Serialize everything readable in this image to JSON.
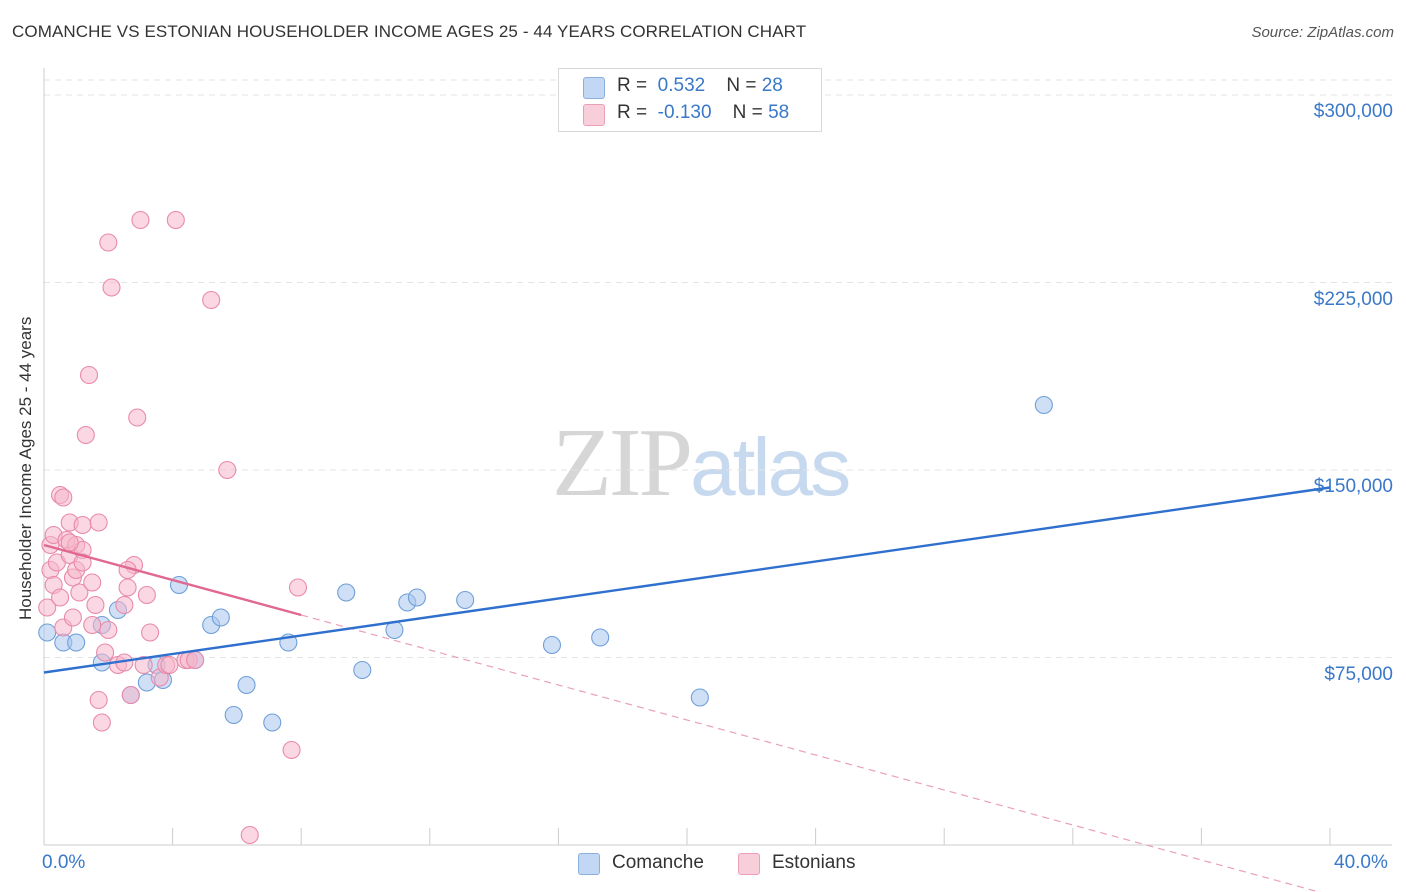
{
  "chart_data": {
    "type": "scatter",
    "title": "COMANCHE VS ESTONIAN HOUSEHOLDER INCOME AGES 25 - 44 YEARS CORRELATION CHART",
    "source": "Source: ZipAtlas.com",
    "xlabel": "",
    "ylabel": "Householder Income Ages 25 - 44 years",
    "xlim": [
      0,
      40
    ],
    "ylim": [
      0,
      310000
    ],
    "x_tick_labels": [
      "0.0%",
      "40.0%"
    ],
    "y_ticks": [
      {
        "value": 75000,
        "label": "$75,000"
      },
      {
        "value": 150000,
        "label": "$150,000"
      },
      {
        "value": 225000,
        "label": "$225,000"
      },
      {
        "value": 300000,
        "label": "$300,000"
      }
    ],
    "grid": true,
    "legend": {
      "position": "top-center",
      "entries": [
        {
          "r_label": "R =",
          "r_value": "0.532",
          "n_label": "N =",
          "n_value": "28",
          "color": "#a8c6ee"
        },
        {
          "r_label": "R =",
          "r_value": "-0.130",
          "n_label": "N =",
          "n_value": "58",
          "color": "#f5b6ca"
        }
      ]
    },
    "series": [
      {
        "name": "Comanche",
        "color": "#a8c6ee",
        "stroke": "#6f9fd8",
        "trend": {
          "x": [
            0,
            40
          ],
          "y": [
            69000,
            143000
          ],
          "color": "#2f6fce"
        },
        "points": [
          [
            0.1,
            85000
          ],
          [
            0.6,
            81000
          ],
          [
            1.0,
            81000
          ],
          [
            1.8,
            88000
          ],
          [
            2.3,
            94000
          ],
          [
            1.8,
            73000
          ],
          [
            2.7,
            60000
          ],
          [
            3.2,
            65000
          ],
          [
            3.5,
            72000
          ],
          [
            3.7,
            66000
          ],
          [
            4.2,
            104000
          ],
          [
            4.7,
            74000
          ],
          [
            5.2,
            88000
          ],
          [
            5.5,
            91000
          ],
          [
            5.9,
            52000
          ],
          [
            6.3,
            64000
          ],
          [
            7.1,
            49000
          ],
          [
            7.6,
            81000
          ],
          [
            9.4,
            101000
          ],
          [
            9.9,
            70000
          ],
          [
            10.9,
            86000
          ],
          [
            11.3,
            97000
          ],
          [
            11.6,
            99000
          ],
          [
            13.1,
            98000
          ],
          [
            15.8,
            80000
          ],
          [
            17.3,
            83000
          ],
          [
            20.4,
            59000
          ],
          [
            31.1,
            176000
          ]
        ]
      },
      {
        "name": "Estonians",
        "color": "#f5b6ca",
        "stroke": "#e98aaa",
        "trend": {
          "x": [
            0,
            8
          ],
          "y": [
            120000,
            92000
          ],
          "dash_to_x": 40,
          "dash_to_y": -20000,
          "color": "#e06891"
        },
        "points": [
          [
            0.1,
            95000
          ],
          [
            0.2,
            110000
          ],
          [
            0.2,
            120000
          ],
          [
            0.3,
            124000
          ],
          [
            0.3,
            104000
          ],
          [
            0.4,
            113000
          ],
          [
            0.5,
            99000
          ],
          [
            0.6,
            87000
          ],
          [
            0.5,
            140000
          ],
          [
            0.6,
            139000
          ],
          [
            0.7,
            122000
          ],
          [
            0.8,
            129000
          ],
          [
            0.8,
            116000
          ],
          [
            0.9,
            107000
          ],
          [
            0.9,
            91000
          ],
          [
            1.0,
            110000
          ],
          [
            1.0,
            120000
          ],
          [
            1.1,
            101000
          ],
          [
            1.2,
            128000
          ],
          [
            1.2,
            118000
          ],
          [
            1.3,
            164000
          ],
          [
            1.4,
            188000
          ],
          [
            1.5,
            105000
          ],
          [
            1.6,
            96000
          ],
          [
            1.7,
            129000
          ],
          [
            1.7,
            58000
          ],
          [
            1.8,
            49000
          ],
          [
            1.9,
            77000
          ],
          [
            2.0,
            86000
          ],
          [
            2.0,
            241000
          ],
          [
            2.1,
            223000
          ],
          [
            2.3,
            72000
          ],
          [
            2.5,
            96000
          ],
          [
            2.7,
            60000
          ],
          [
            2.8,
            112000
          ],
          [
            2.9,
            171000
          ],
          [
            3.0,
            250000
          ],
          [
            3.1,
            72000
          ],
          [
            2.6,
            110000
          ],
          [
            2.6,
            103000
          ],
          [
            3.2,
            100000
          ],
          [
            3.3,
            85000
          ],
          [
            3.6,
            67000
          ],
          [
            3.8,
            72000
          ],
          [
            3.9,
            72000
          ],
          [
            4.4,
            74000
          ],
          [
            4.5,
            74000
          ],
          [
            4.7,
            74000
          ],
          [
            4.1,
            250000
          ],
          [
            5.2,
            218000
          ],
          [
            5.7,
            150000
          ],
          [
            7.7,
            38000
          ],
          [
            7.9,
            103000
          ],
          [
            6.4,
            4000
          ],
          [
            2.5,
            73000
          ],
          [
            1.5,
            88000
          ],
          [
            0.8,
            121000
          ],
          [
            1.2,
            113000
          ]
        ]
      }
    ]
  },
  "bottom_legend": [
    {
      "name": "Comanche",
      "color": "#a8c6ee"
    },
    {
      "name": "Estonians",
      "color": "#f5b6ca"
    }
  ],
  "watermark": {
    "part1": "ZIP",
    "part2": "atlas"
  }
}
